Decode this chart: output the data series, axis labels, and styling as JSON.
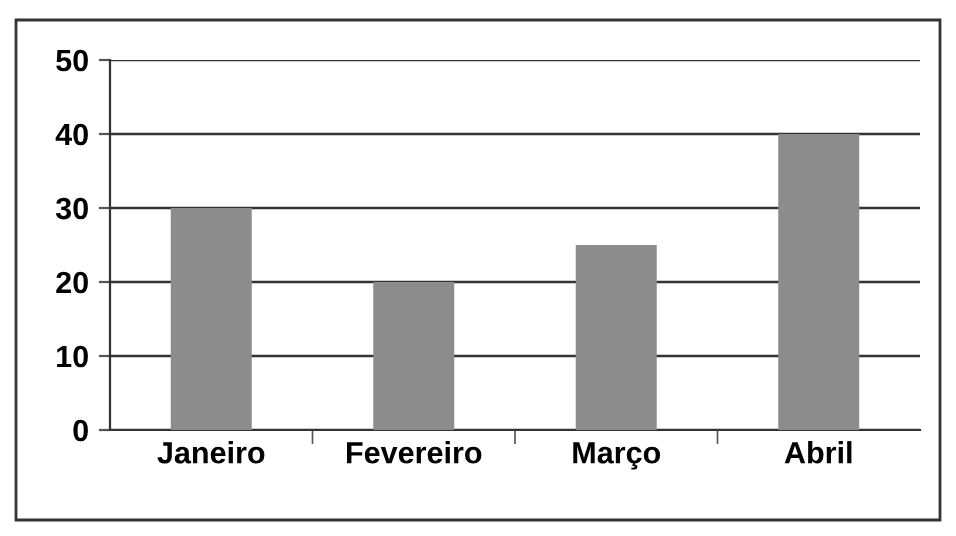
{
  "chart_data": {
    "type": "bar",
    "categories": [
      "Janeiro",
      "Fevereiro",
      "Março",
      "Abril"
    ],
    "values": [
      30,
      20,
      25,
      40
    ],
    "color": "#8c8c8c",
    "ylim": [
      0,
      50
    ],
    "yticks": [
      0,
      10,
      20,
      30,
      40,
      50
    ],
    "grid": "y",
    "legend": false
  }
}
